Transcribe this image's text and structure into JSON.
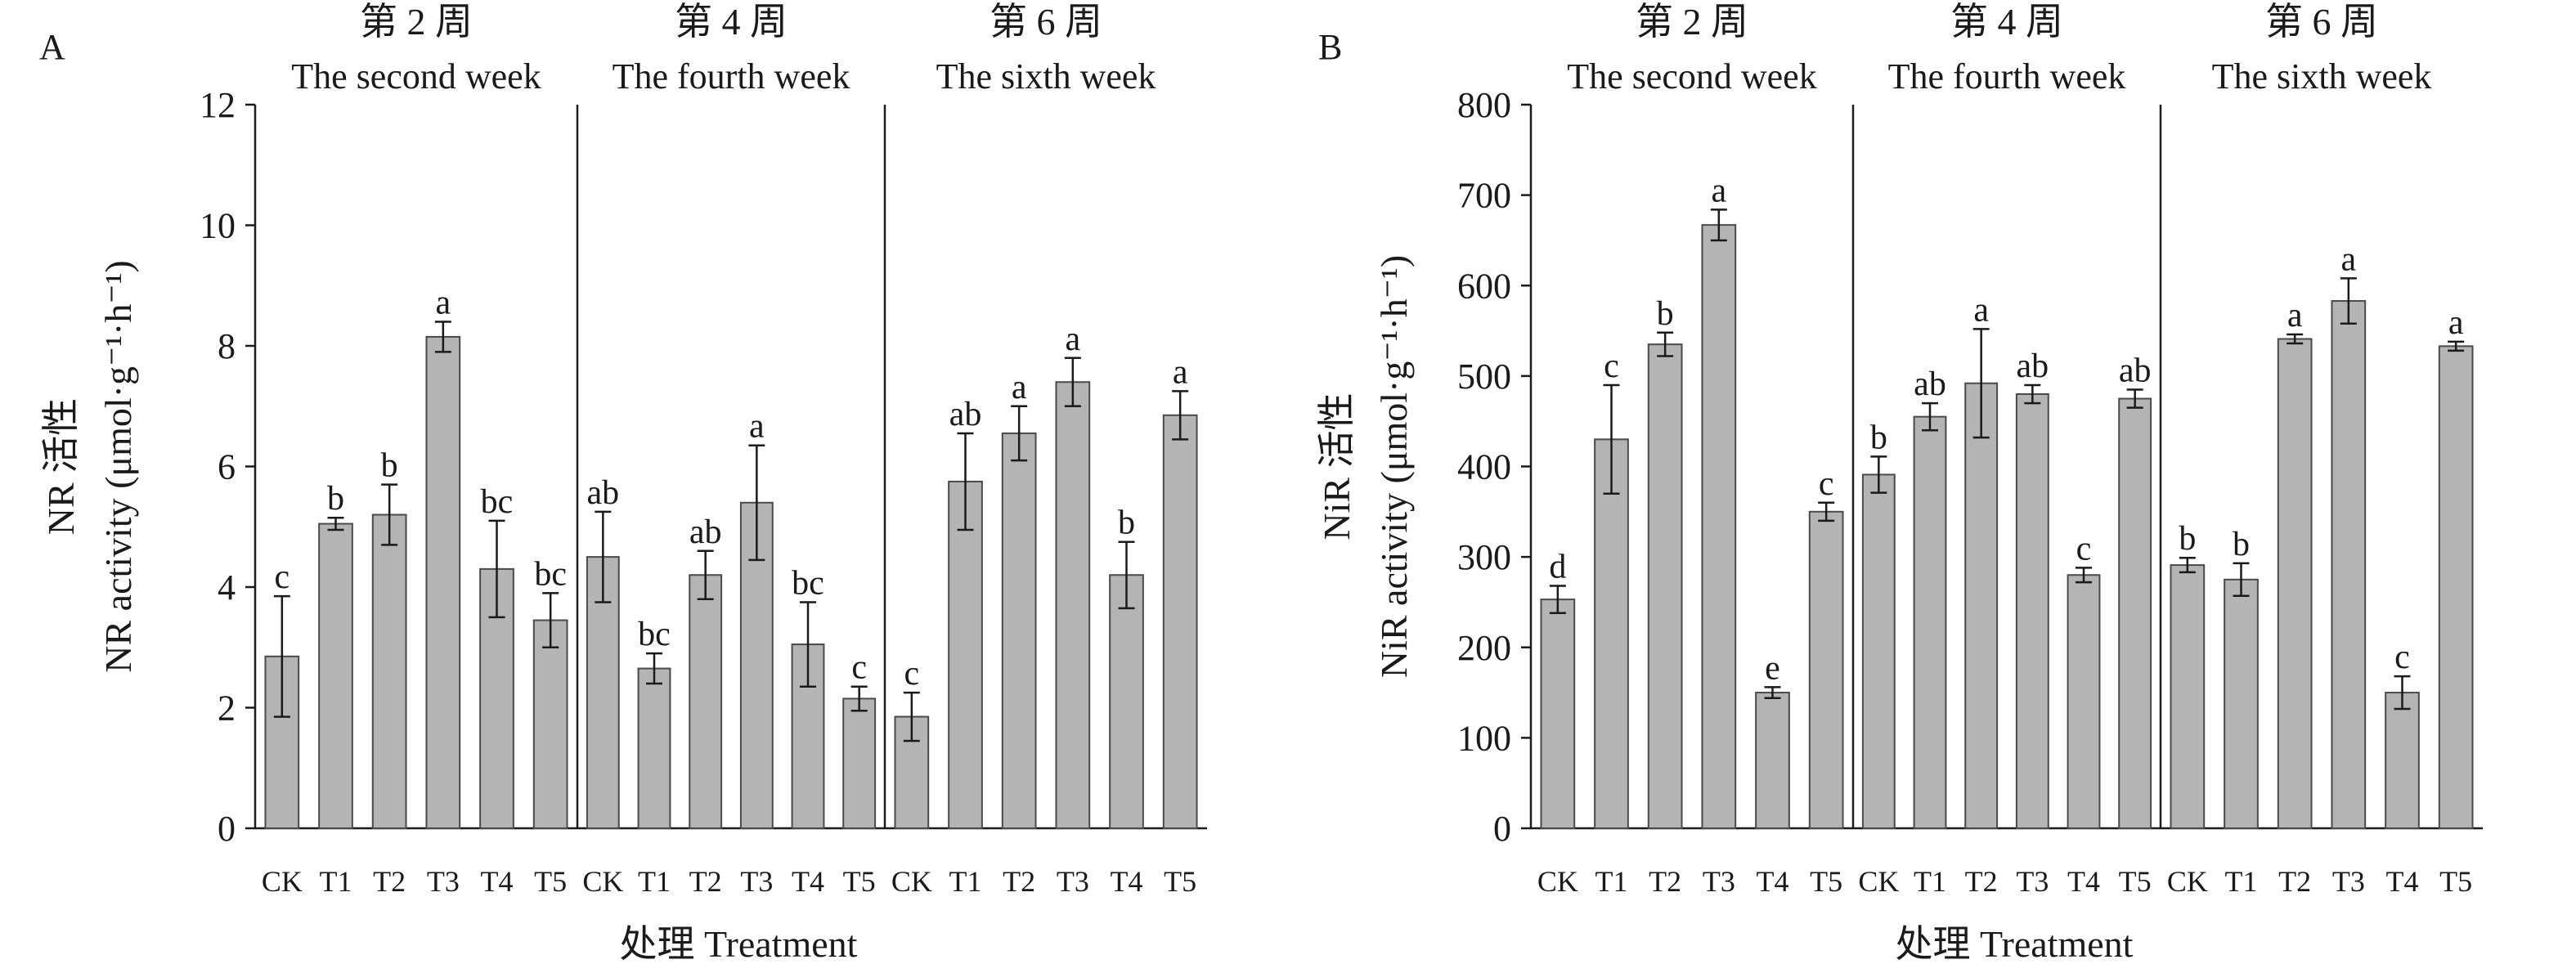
{
  "chart_data": [
    {
      "type": "bar",
      "panel_label": "A",
      "ylabel_cn": "NR 活性",
      "ylabel_en": "NR activity (μmol·g⁻¹·h⁻¹)",
      "xlabel": "处理 Treatment",
      "ylim": [
        0,
        12
      ],
      "yticks": [
        "0",
        "2",
        "4",
        "6",
        "8",
        "10",
        "12"
      ],
      "groups": [
        {
          "title_cn": "第 2 周",
          "title_en": "The second week",
          "categories": [
            "CK",
            "T1",
            "T2",
            "T3",
            "T4",
            "T5"
          ],
          "values": [
            2.85,
            5.05,
            5.2,
            8.15,
            4.3,
            3.45
          ],
          "errors": [
            1.0,
            0.1,
            0.5,
            0.25,
            0.8,
            0.45
          ],
          "letters": [
            "c",
            "b",
            "b",
            "a",
            "bc",
            "bc"
          ]
        },
        {
          "title_cn": "第 4 周",
          "title_en": "The fourth week",
          "categories": [
            "CK",
            "T1",
            "T2",
            "T3",
            "T4",
            "T5"
          ],
          "values": [
            4.5,
            2.65,
            4.2,
            5.4,
            3.05,
            2.15
          ],
          "errors": [
            0.75,
            0.25,
            0.4,
            0.95,
            0.7,
            0.2
          ],
          "letters": [
            "ab",
            "bc",
            "ab",
            "a",
            "bc",
            "c"
          ]
        },
        {
          "title_cn": "第 6 周",
          "title_en": "The sixth week",
          "categories": [
            "CK",
            "T1",
            "T2",
            "T3",
            "T4",
            "T5"
          ],
          "values": [
            1.85,
            5.75,
            6.55,
            7.4,
            4.2,
            6.85
          ],
          "errors": [
            0.4,
            0.8,
            0.45,
            0.4,
            0.55,
            0.4
          ],
          "letters": [
            "c",
            "ab",
            "a",
            "a",
            "b",
            "a"
          ]
        }
      ]
    },
    {
      "type": "bar",
      "panel_label": "B",
      "ylabel_cn": "NiR 活性",
      "ylabel_en": "NiR activity (μmol·g⁻¹·h⁻¹)",
      "xlabel": "处理 Treatment",
      "ylim": [
        0,
        800
      ],
      "yticks": [
        "0",
        "100",
        "200",
        "300",
        "400",
        "500",
        "600",
        "700",
        "800"
      ],
      "groups": [
        {
          "title_cn": "第 2 周",
          "title_en": "The second week",
          "categories": [
            "CK",
            "T1",
            "T2",
            "T3",
            "T4",
            "T5"
          ],
          "values": [
            253,
            430,
            535,
            667,
            150,
            350
          ],
          "errors": [
            15,
            60,
            13,
            17,
            6,
            10
          ],
          "letters": [
            "d",
            "c",
            "b",
            "a",
            "e",
            "c"
          ]
        },
        {
          "title_cn": "第 4 周",
          "title_en": "The fourth week",
          "categories": [
            "CK",
            "T1",
            "T2",
            "T3",
            "T4",
            "T5"
          ],
          "values": [
            391,
            455,
            492,
            480,
            280,
            475
          ],
          "errors": [
            20,
            15,
            60,
            10,
            8,
            10
          ],
          "letters": [
            "b",
            "ab",
            "a",
            "ab",
            "c",
            "ab"
          ]
        },
        {
          "title_cn": "第 6 周",
          "title_en": "The sixth week",
          "categories": [
            "CK",
            "T1",
            "T2",
            "T3",
            "T4",
            "T5"
          ],
          "values": [
            291,
            275,
            541,
            583,
            150,
            533
          ],
          "errors": [
            8,
            18,
            5,
            25,
            18,
            5
          ],
          "letters": [
            "b",
            "b",
            "a",
            "a",
            "c",
            "a"
          ]
        }
      ]
    }
  ]
}
